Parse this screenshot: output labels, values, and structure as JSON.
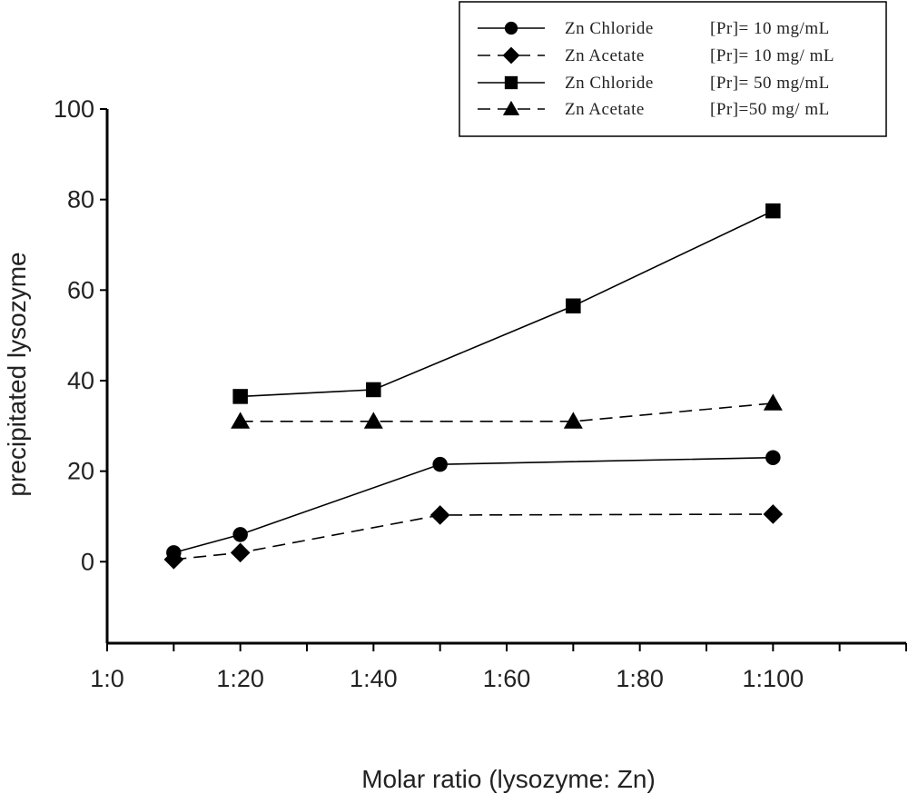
{
  "chart_data": {
    "type": "line",
    "title": "",
    "xlabel": "Molar ratio (lysozyme: Zn)",
    "ylabel": "precipitated lysozyme",
    "xlim": [
      0,
      120
    ],
    "ylim": [
      -18,
      100
    ],
    "xticks": [
      0,
      20,
      40,
      60,
      80,
      100
    ],
    "xtick_labels": [
      "1:0",
      "1:20",
      "1:40",
      "1:60",
      "1:80",
      "1:100"
    ],
    "yticks": [
      0,
      20,
      40,
      60,
      80,
      100
    ],
    "ytick_labels": [
      "0",
      "20",
      "40",
      "60",
      "80",
      "100"
    ],
    "grid": false,
    "legend_position": "top-right",
    "series": [
      {
        "name": "Zn Chloride",
        "concentration": "[Pr]= 10 mg/mL",
        "marker": "circle",
        "dash": "solid",
        "x": [
          10,
          20,
          50,
          100
        ],
        "y": [
          2,
          6,
          21.5,
          23
        ]
      },
      {
        "name": "Zn Acetate",
        "concentration": "[Pr]= 10 mg/ mL",
        "marker": "diamond",
        "dash": "dashed",
        "x": [
          10,
          20,
          50,
          100
        ],
        "y": [
          0.5,
          2,
          10.3,
          10.5
        ]
      },
      {
        "name": "Zn Chloride",
        "concentration": "[Pr]= 50 mg/mL",
        "marker": "square",
        "dash": "solid",
        "x": [
          20,
          40,
          70,
          100
        ],
        "y": [
          36.5,
          38,
          56.5,
          77.5
        ]
      },
      {
        "name": "Zn Acetate",
        "concentration": "[Pr]=50 mg/ mL",
        "marker": "triangle",
        "dash": "dashed",
        "x": [
          20,
          40,
          70,
          100
        ],
        "y": [
          31,
          31,
          31,
          35
        ]
      }
    ]
  }
}
